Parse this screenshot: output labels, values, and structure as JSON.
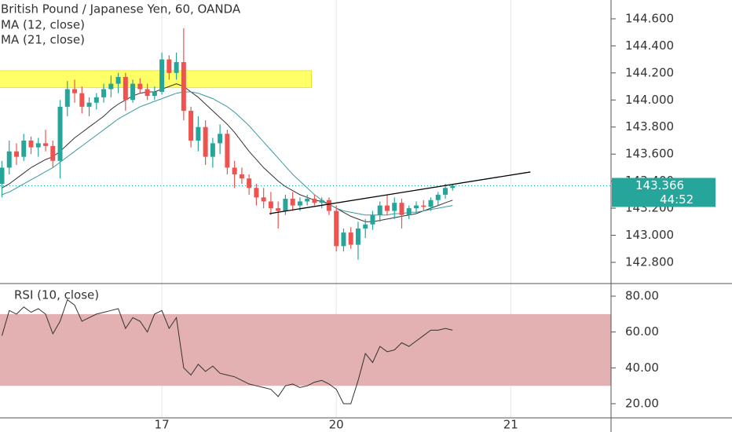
{
  "chart_data": [
    {
      "type": "candlestick",
      "title": "British Pound / Japanese Yen, 60, OANDA",
      "xlim": [
        -0.27,
        83.8
      ],
      "xticks": [
        {
          "value": 22,
          "label": "17"
        },
        {
          "value": 46,
          "label": "20"
        },
        {
          "value": 70,
          "label": "21"
        }
      ],
      "ylim": [
        142.649,
        144.739
      ],
      "yticks": [
        {
          "value": 142.8,
          "label": "142.800"
        },
        {
          "value": 143,
          "label": "143.000"
        },
        {
          "value": 143.2,
          "label": "143.200"
        },
        {
          "value": 143.4,
          "label": "143.400"
        },
        {
          "value": 143.6,
          "label": "143.600"
        },
        {
          "value": 143.8,
          "label": "143.800"
        },
        {
          "value": 144,
          "label": "144.000"
        },
        {
          "value": 144.2,
          "label": "144.200"
        },
        {
          "value": 144.4,
          "label": "144.400"
        },
        {
          "value": 144.6,
          "label": "144.600"
        }
      ],
      "up_color": "#26a69a",
      "down_color": "#ef5350",
      "open": [
        143.38,
        143.5,
        143.62,
        143.58,
        143.7,
        143.65,
        143.68,
        143.66,
        143.55,
        143.95,
        144.08,
        144.05,
        143.95,
        143.98,
        144.02,
        144.08,
        144.12,
        144.17,
        144.0,
        144.12,
        144.08,
        144.03,
        144.06,
        144.3,
        144.2,
        144.28,
        143.92,
        143.7,
        143.8,
        143.58,
        143.68,
        143.75,
        143.5,
        143.45,
        143.42,
        143.35,
        143.28,
        143.25,
        143.2,
        143.18,
        143.27,
        143.22,
        143.25,
        143.27,
        143.24,
        143.26,
        143.18,
        142.92,
        143.02,
        142.93,
        143.05,
        143.08,
        143.15,
        143.22,
        143.18,
        143.24,
        143.15,
        143.2,
        143.22,
        143.21,
        143.26,
        143.3,
        143.35
      ],
      "high": [
        143.55,
        143.7,
        143.68,
        143.75,
        143.73,
        143.72,
        143.78,
        143.7,
        144.0,
        144.14,
        144.15,
        144.1,
        144.02,
        144.05,
        144.12,
        144.18,
        144.2,
        144.2,
        144.15,
        144.16,
        144.12,
        144.1,
        144.35,
        144.33,
        144.35,
        144.53,
        143.95,
        143.88,
        143.85,
        143.72,
        143.82,
        143.78,
        143.55,
        143.5,
        143.45,
        143.38,
        143.35,
        143.32,
        143.25,
        143.3,
        143.32,
        143.28,
        143.3,
        143.3,
        143.28,
        143.28,
        143.22,
        143.05,
        143.06,
        143.1,
        143.12,
        143.18,
        143.25,
        143.3,
        143.28,
        143.27,
        143.22,
        143.25,
        143.26,
        143.28,
        143.32,
        143.38,
        143.38
      ],
      "low": [
        143.28,
        143.45,
        143.52,
        143.55,
        143.6,
        143.58,
        143.62,
        143.5,
        143.42,
        143.88,
        143.98,
        143.9,
        143.88,
        143.93,
        143.98,
        144.02,
        144.05,
        143.92,
        143.98,
        144.05,
        144.0,
        144.0,
        144.04,
        144.15,
        144.15,
        143.85,
        143.65,
        143.62,
        143.52,
        143.5,
        143.6,
        143.45,
        143.35,
        143.38,
        143.3,
        143.22,
        143.2,
        143.15,
        143.05,
        143.15,
        143.18,
        143.18,
        143.22,
        143.22,
        143.2,
        143.15,
        142.88,
        142.88,
        142.9,
        142.82,
        142.98,
        143.04,
        143.1,
        143.15,
        143.12,
        143.05,
        143.12,
        143.16,
        143.18,
        143.18,
        143.22,
        143.27,
        143.33
      ],
      "close": [
        143.5,
        143.62,
        143.58,
        143.7,
        143.65,
        143.68,
        143.66,
        143.55,
        143.95,
        144.08,
        144.05,
        143.95,
        143.98,
        144.02,
        144.08,
        144.12,
        144.17,
        144.0,
        144.12,
        144.08,
        144.03,
        144.06,
        144.3,
        144.2,
        144.28,
        143.92,
        143.7,
        143.8,
        143.58,
        143.68,
        143.75,
        143.5,
        143.45,
        143.42,
        143.35,
        143.28,
        143.25,
        143.2,
        143.18,
        143.27,
        143.22,
        143.25,
        143.27,
        143.24,
        143.26,
        143.18,
        142.92,
        143.02,
        142.93,
        143.05,
        143.08,
        143.15,
        143.22,
        143.18,
        143.24,
        143.15,
        143.2,
        143.22,
        143.21,
        143.26,
        143.3,
        143.35,
        143.366
      ],
      "series": [
        {
          "name": "MA (12, close)",
          "color": "#333333",
          "values": [
            143.35,
            143.38,
            143.42,
            143.46,
            143.5,
            143.53,
            143.56,
            143.58,
            143.62,
            143.67,
            143.72,
            143.76,
            143.8,
            143.84,
            143.88,
            143.93,
            143.97,
            144.0,
            144.03,
            144.05,
            144.06,
            144.06,
            144.08,
            144.1,
            144.12,
            144.1,
            144.06,
            144.02,
            143.97,
            143.92,
            143.87,
            143.82,
            143.76,
            143.69,
            143.62,
            143.56,
            143.5,
            143.45,
            143.4,
            143.36,
            143.33,
            143.3,
            143.28,
            143.26,
            143.25,
            143.23,
            143.2,
            143.17,
            143.14,
            143.12,
            143.1,
            143.1,
            143.11,
            143.12,
            143.13,
            143.14,
            143.15,
            143.16,
            143.18,
            143.2,
            143.22,
            143.24,
            143.26
          ]
        },
        {
          "name": "MA (21, close)",
          "color": "#3a9aa0",
          "values": [
            143.3,
            143.32,
            143.35,
            143.38,
            143.41,
            143.44,
            143.47,
            143.5,
            143.54,
            143.58,
            143.62,
            143.66,
            143.7,
            143.74,
            143.78,
            143.82,
            143.86,
            143.89,
            143.92,
            143.95,
            143.97,
            143.99,
            144.01,
            144.03,
            144.05,
            144.06,
            144.06,
            144.05,
            144.03,
            144.01,
            143.98,
            143.95,
            143.91,
            143.86,
            143.81,
            143.75,
            143.69,
            143.63,
            143.57,
            143.51,
            143.45,
            143.4,
            143.35,
            143.3,
            143.26,
            143.23,
            143.2,
            143.18,
            143.17,
            143.16,
            143.15,
            143.15,
            143.15,
            143.15,
            143.16,
            143.16,
            143.17,
            143.17,
            143.18,
            143.19,
            143.2,
            143.21,
            143.22
          ]
        }
      ],
      "zone": {
        "x": [
          -0.5,
          42.6
        ],
        "y": [
          144.09,
          144.217
        ],
        "color": "#ffff66"
      },
      "trendline": {
        "x": [
          36.8,
          72.7
        ],
        "y": [
          143.16,
          143.468
        ],
        "color": "#000000"
      },
      "last_price": {
        "value": 143.366,
        "label": "143.366"
      },
      "countdown": "44:52"
    },
    {
      "type": "line",
      "title": "RSI (10, close)",
      "ylim": [
        12.1,
        86.6
      ],
      "yticks": [
        {
          "value": 20,
          "label": "20.00"
        },
        {
          "value": 40,
          "label": "40.00"
        },
        {
          "value": 60,
          "label": "60.00"
        },
        {
          "value": 80,
          "label": "80.00"
        }
      ],
      "band": [
        30,
        70
      ],
      "band_color": "#e3b1b1",
      "series": [
        {
          "name": "RSI (10, close)",
          "color": "#333333",
          "values": [
            58,
            72,
            70,
            74,
            71,
            73,
            70,
            59,
            66,
            78,
            75,
            66,
            68,
            70,
            71,
            72,
            73,
            62,
            68,
            66,
            60,
            70,
            72,
            62,
            68,
            40,
            36,
            42,
            38,
            41,
            37,
            36,
            35,
            33,
            31,
            30,
            29,
            28,
            24,
            30,
            31,
            29,
            30,
            32,
            33,
            31,
            28,
            20,
            20,
            33,
            48,
            43,
            52,
            49,
            50,
            54,
            52,
            55,
            58,
            61,
            61,
            62,
            61
          ]
        }
      ]
    }
  ]
}
